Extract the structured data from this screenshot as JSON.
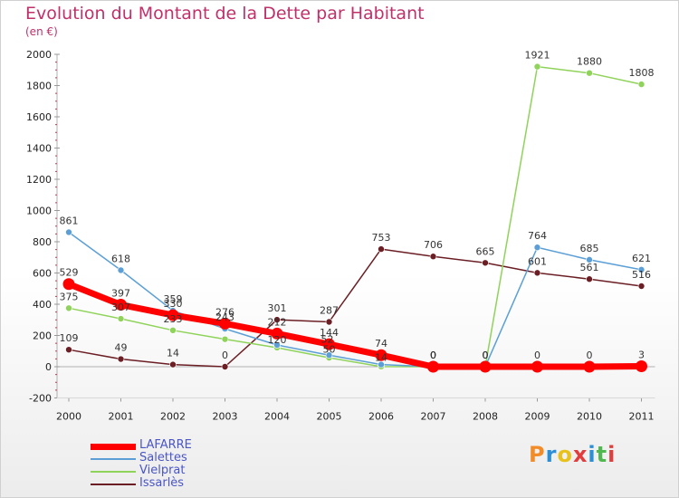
{
  "header": {
    "title": "Evolution du Montant de la Dette par Habitant",
    "subtitle": "(en €)"
  },
  "brand": {
    "name": "Proxiti",
    "colors": [
      "#f28c28",
      "#2a8fd6",
      "#e8c21b",
      "#e23c3c",
      "#2a8fd6",
      "#4fb84f",
      "#e23c3c"
    ]
  },
  "chart_data": {
    "type": "line",
    "title": "Evolution du Montant de la Dette par Habitant",
    "subtitle": "(en €)",
    "xlabel": "",
    "ylabel": "",
    "x": [
      "2000",
      "2001",
      "2002",
      "2003",
      "2004",
      "2005",
      "2006",
      "2007",
      "2008",
      "2009",
      "2010",
      "2011"
    ],
    "ylim": [
      -200,
      2000
    ],
    "yticks": [
      -200,
      0,
      200,
      400,
      600,
      800,
      1000,
      1200,
      1400,
      1600,
      1800,
      2000
    ],
    "grid": false,
    "legend_position": "bottom-left",
    "series": [
      {
        "name": "Issarlès",
        "color": "#6b1f25",
        "line_width": 1.5,
        "marker_radius": 3.5,
        "values": [
          109,
          49,
          14,
          0,
          301,
          287,
          753,
          706,
          665,
          601,
          561,
          516
        ],
        "labels": [
          "109",
          "49",
          "14",
          "0",
          "301",
          "287",
          "753",
          "706",
          "665",
          "601",
          "561",
          "516"
        ]
      },
      {
        "name": "Vielprat",
        "color": "#8fd35a",
        "line_width": 1.5,
        "marker_radius": 3.5,
        "values": [
          375,
          307,
          233,
          176,
          122,
          57,
          1,
          0,
          0,
          1921,
          1880,
          1808
        ],
        "labels": [
          "375",
          "307",
          "233",
          "",
          "",
          "",
          "",
          "0",
          "0",
          "1921",
          "1880",
          "1808"
        ]
      },
      {
        "name": "Salettes",
        "color": "#5b9fd6",
        "line_width": 1.5,
        "marker_radius": 3.5,
        "values": [
          861,
          618,
          359,
          243,
          139,
          74,
          14,
          0,
          0,
          764,
          685,
          621
        ],
        "labels": [
          "861",
          "618",
          "359",
          "243",
          "",
          "",
          "",
          "0",
          "0",
          "764",
          "685",
          "621"
        ]
      },
      {
        "name": "LAFARRE",
        "color": "#ff0000",
        "line_width": 7,
        "marker_radius": 6.5,
        "values": [
          529,
          397,
          330,
          276,
          212,
          144,
          74,
          0,
          0,
          0,
          0,
          3
        ],
        "labels": [
          "529",
          "397",
          "330",
          "276",
          "212",
          "144",
          "74",
          "0",
          "0",
          "0",
          "0",
          "3"
        ]
      }
    ],
    "extra_labels": [
      "120",
      "50",
      "14",
      "52"
    ]
  },
  "legend": {
    "items": [
      {
        "label": "LAFARRE",
        "color": "#ff0000",
        "thickness": 7
      },
      {
        "label": "Salettes",
        "color": "#5b9fd6",
        "thickness": 2
      },
      {
        "label": "Vielprat",
        "color": "#8fd35a",
        "thickness": 2
      },
      {
        "label": "Issarlès",
        "color": "#6b1f25",
        "thickness": 2
      }
    ]
  }
}
